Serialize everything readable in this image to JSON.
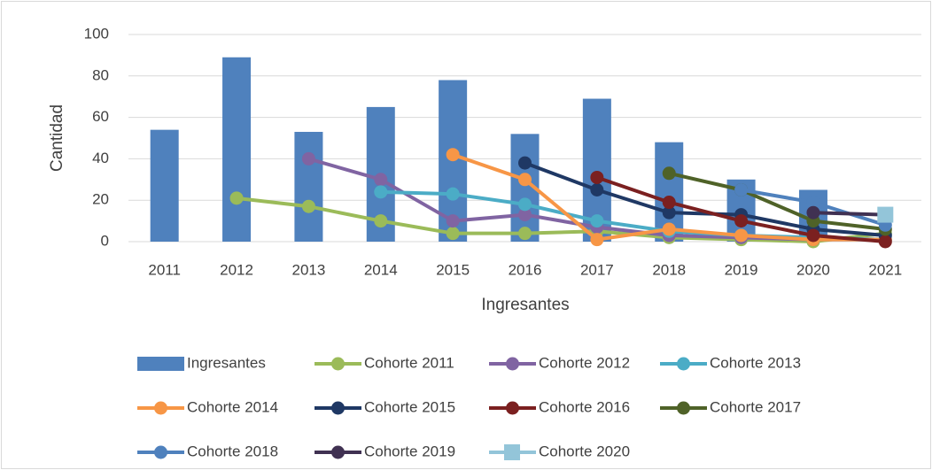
{
  "chart_data": {
    "type": "bar",
    "x_label": "Ingresantes",
    "y_label": "Cantidad",
    "categories": [
      "2011",
      "2012",
      "2013",
      "2014",
      "2015",
      "2016",
      "2017",
      "2018",
      "2019",
      "2020",
      "2021"
    ],
    "ylim": [
      0,
      100
    ],
    "yticks": [
      0,
      20,
      40,
      60,
      80,
      100
    ],
    "grid": true,
    "series": [
      {
        "name": "Ingresantes",
        "type": "bar",
        "color": "#4f81bd",
        "values": [
          54,
          89,
          53,
          65,
          78,
          52,
          69,
          48,
          30,
          25,
          null
        ]
      },
      {
        "name": "Cohorte 2011",
        "type": "line",
        "color": "#9bbb59",
        "values": [
          null,
          21,
          17,
          10,
          4,
          4,
          5,
          2,
          1,
          0,
          4
        ]
      },
      {
        "name": "Cohorte 2012",
        "type": "line",
        "color": "#8064a2",
        "values": [
          null,
          null,
          40,
          30,
          10,
          13,
          7,
          3,
          2,
          1,
          1
        ]
      },
      {
        "name": "Cohorte 2013",
        "type": "line",
        "color": "#4bacc6",
        "values": [
          null,
          null,
          null,
          24,
          23,
          18,
          10,
          5,
          3,
          2,
          1
        ]
      },
      {
        "name": "Cohorte 2014",
        "type": "line",
        "color": "#f79646",
        "values": [
          null,
          null,
          null,
          null,
          42,
          30,
          1,
          6,
          3,
          1,
          1
        ]
      },
      {
        "name": "Cohorte 2015",
        "type": "line",
        "color": "#1f3864",
        "values": [
          null,
          null,
          null,
          null,
          null,
          38,
          25,
          14,
          13,
          6,
          3
        ]
      },
      {
        "name": "Cohorte 2016",
        "type": "line",
        "color": "#7b2020",
        "values": [
          null,
          null,
          null,
          null,
          null,
          null,
          31,
          19,
          10,
          3,
          0
        ]
      },
      {
        "name": "Cohorte 2017",
        "type": "line",
        "color": "#4f6228",
        "values": [
          null,
          null,
          null,
          null,
          null,
          null,
          null,
          33,
          25,
          10,
          6
        ]
      },
      {
        "name": "Cohorte 2018",
        "type": "line",
        "color": "#4f81bd",
        "values": [
          null,
          null,
          null,
          null,
          null,
          null,
          null,
          null,
          25,
          19,
          8
        ]
      },
      {
        "name": "Cohorte 2019",
        "type": "line",
        "color": "#403152",
        "values": [
          null,
          null,
          null,
          null,
          null,
          null,
          null,
          null,
          null,
          14,
          13
        ]
      },
      {
        "name": "Cohorte 2020",
        "type": "line",
        "marker": "square",
        "color": "#93c5d9",
        "values": [
          null,
          null,
          null,
          null,
          null,
          null,
          null,
          null,
          null,
          null,
          13
        ]
      }
    ]
  }
}
